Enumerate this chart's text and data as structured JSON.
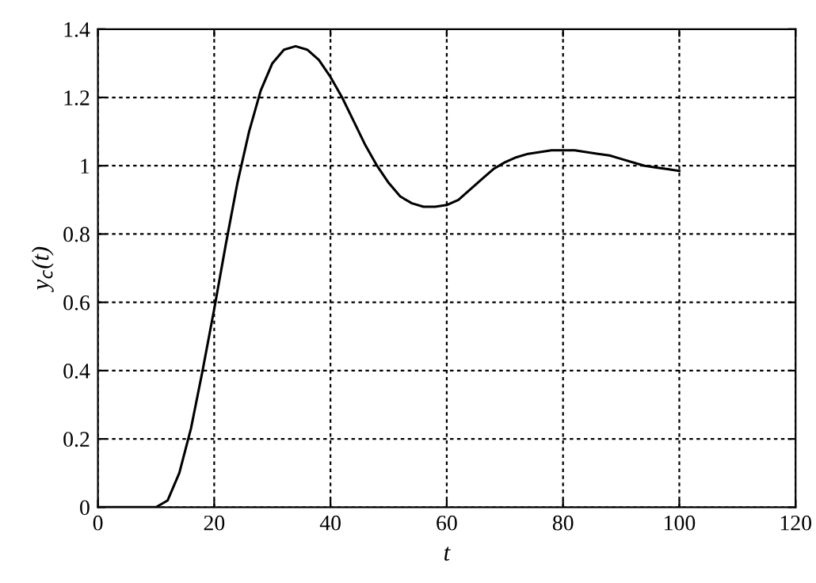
{
  "chart_data": {
    "type": "line",
    "xlabel": "t",
    "ylabel": "y$_{c}$(t)",
    "xlim": [
      0,
      120
    ],
    "xticks": [
      0,
      20,
      40,
      60,
      80,
      100,
      120
    ],
    "ylim": [
      0,
      1.4
    ],
    "yticks": [
      0,
      0.2,
      0.4,
      0.6,
      0.8,
      1,
      1.2,
      1.4
    ],
    "grid": true,
    "line_style": "solid",
    "marker": "none",
    "series": [
      {
        "color": "#000000",
        "x": [
          0,
          10,
          12,
          14,
          16,
          18,
          20,
          22,
          24,
          26,
          28,
          30,
          32,
          34,
          36,
          38,
          40,
          42,
          44,
          46,
          48,
          50,
          52,
          54,
          56,
          58,
          60,
          62,
          64,
          66,
          68,
          70,
          72,
          74,
          76,
          78,
          80,
          82,
          84,
          86,
          88,
          90,
          92,
          94,
          96,
          98,
          100
        ],
        "values": [
          0,
          0,
          0.02,
          0.1,
          0.23,
          0.4,
          0.58,
          0.77,
          0.95,
          1.1,
          1.22,
          1.3,
          1.34,
          1.35,
          1.34,
          1.31,
          1.26,
          1.2,
          1.13,
          1.06,
          1.0,
          0.95,
          0.91,
          0.89,
          0.88,
          0.88,
          0.885,
          0.9,
          0.93,
          0.96,
          0.99,
          1.01,
          1.025,
          1.035,
          1.04,
          1.045,
          1.045,
          1.045,
          1.04,
          1.035,
          1.03,
          1.02,
          1.01,
          1.0,
          0.995,
          0.99,
          0.985
        ]
      }
    ]
  }
}
